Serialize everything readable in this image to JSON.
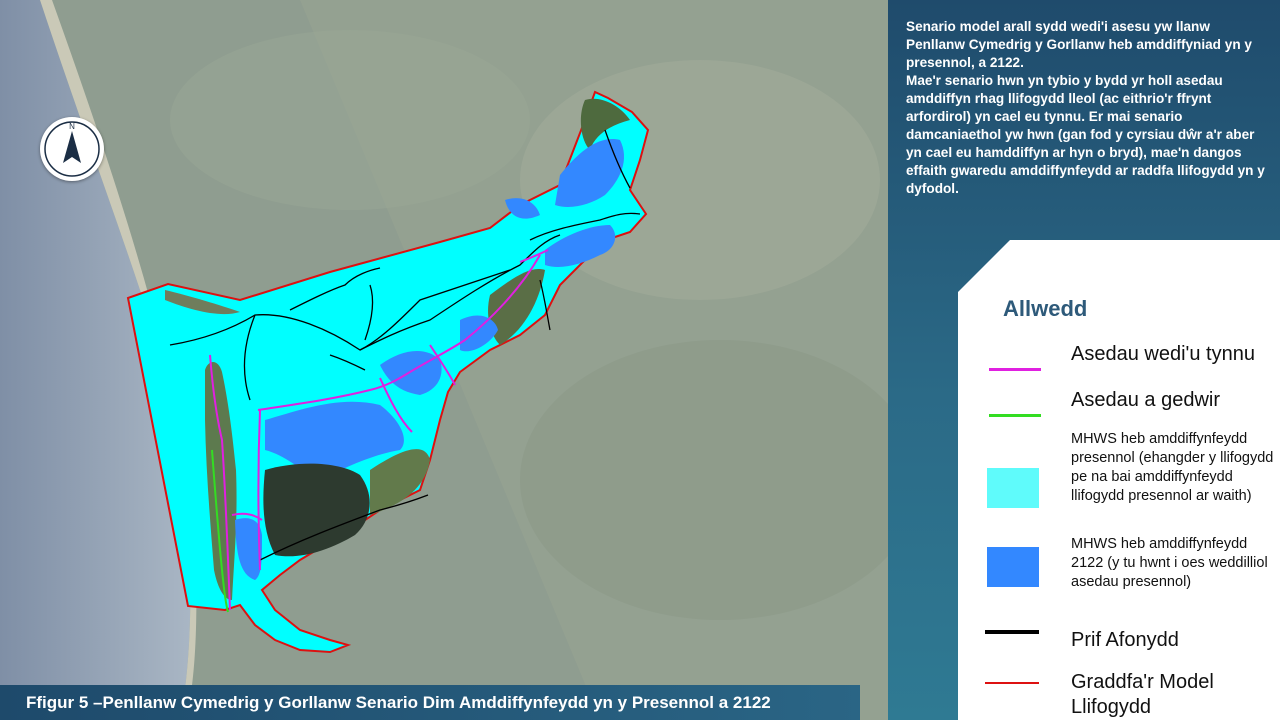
{
  "description": {
    "paragraph1": "Senario model arall sydd wedi'i asesu yw llanw Penllanw Cymedrig y Gorllanw heb amddiffyniad yn y presennol, a 2122.",
    "paragraph2": "Mae'r senario hwn yn tybio y bydd yr holl asedau amddiffyn rhag llifogydd lleol (ac eithrio'r ffrynt arfordirol) yn cael eu tynnu. Er mai senario damcaniaethol yw hwn (gan fod y cyrsiau dŵr a'r aber yn cael eu hamddiffyn ar hyn o bryd), mae'n dangos effaith gwaredu amddiffynfeydd ar raddfa llifogydd yn y dyfodol."
  },
  "legend": {
    "title": "Allwedd",
    "items": [
      {
        "label": "Asedau wedi'u tynnu",
        "symbol": "line",
        "color": "#e020e0"
      },
      {
        "label": "Asedau a gedwir",
        "symbol": "line",
        "color": "#33dd22"
      },
      {
        "label": "MHWS heb amddiffynfeydd presennol (ehangder y llifogydd pe na bai amddiffynfeydd llifogydd presennol ar waith)",
        "symbol": "box",
        "color": "#5ffbfb"
      },
      {
        "label": "MHWS heb amddiffynfeydd 2122 (y tu hwnt i oes weddilliol asedau presennol)",
        "symbol": "box",
        "color": "#3388ff"
      },
      {
        "label": "Prif Afonydd",
        "symbol": "line",
        "color": "#000000"
      },
      {
        "label": "Graddfa'r Model Llifogydd",
        "symbol": "line",
        "color": "#dd1111"
      }
    ]
  },
  "map": {
    "north_label": "N",
    "colors": {
      "flood_present": "#00ffff",
      "flood_2122": "#3388ff",
      "model_extent": "#dd1111",
      "removed_assets": "#e020e0",
      "retained_assets": "#33dd22",
      "rivers": "#000000"
    }
  },
  "caption": "Ffigur 5 –Penllanw Cymedrig y Gorllanw Senario Dim Amddiffynfeydd yn y Presennol a 2122"
}
